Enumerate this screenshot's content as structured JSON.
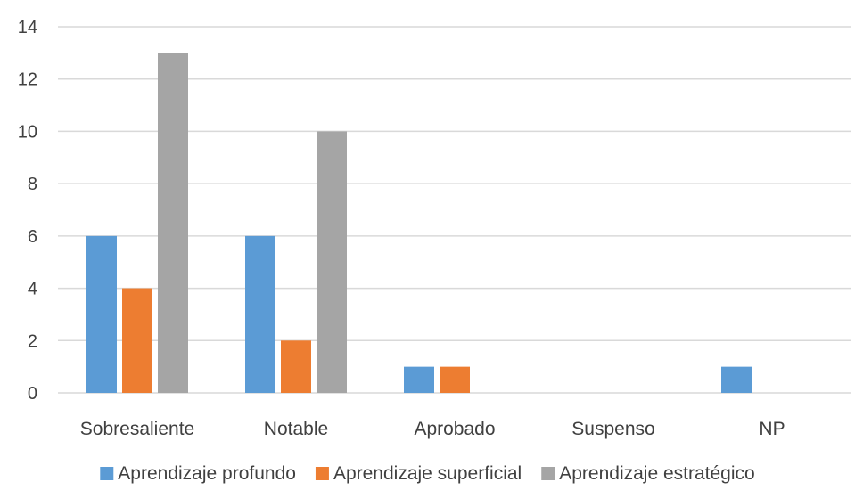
{
  "chart_data": {
    "type": "bar",
    "categories": [
      "Sobresaliente",
      "Notable",
      "Aprobado",
      "Suspenso",
      "NP"
    ],
    "series": [
      {
        "name": "Aprendizaje profundo",
        "values": [
          6,
          6,
          1,
          0,
          1
        ],
        "color": "#5b9bd5"
      },
      {
        "name": "Aprendizaje superficial",
        "values": [
          4,
          2,
          1,
          0,
          0
        ],
        "color": "#ed7d31"
      },
      {
        "name": "Aprendizaje estratégico",
        "values": [
          13,
          10,
          0,
          0,
          0
        ],
        "color": "#a5a5a5"
      }
    ],
    "yticks": [
      "0",
      "2",
      "4",
      "6",
      "8",
      "10",
      "12",
      "14"
    ],
    "ylim": [
      0,
      14
    ],
    "grid": true,
    "legend_position": "bottom"
  }
}
